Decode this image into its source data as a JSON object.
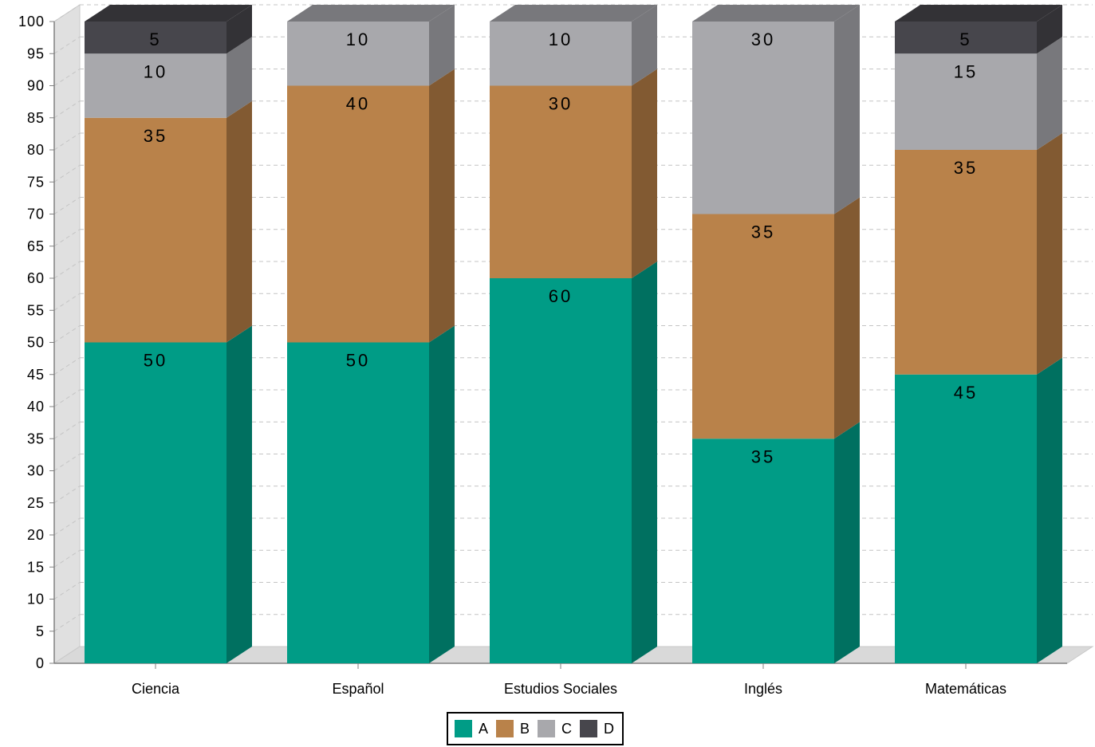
{
  "chart_data": {
    "type": "bar",
    "stacked": true,
    "three_d": true,
    "categories": [
      "Ciencia",
      "Español",
      "Estudios Sociales",
      "Inglés",
      "Matemáticas"
    ],
    "series": [
      {
        "name": "A",
        "values": [
          50,
          50,
          60,
          35,
          45
        ],
        "color": "#009c86",
        "side_color": "#007060"
      },
      {
        "name": "B",
        "values": [
          35,
          40,
          30,
          35,
          35
        ],
        "color": "#b9824a",
        "side_color": "#825a32"
      },
      {
        "name": "C",
        "values": [
          10,
          10,
          10,
          30,
          15
        ],
        "color": "#a8a8ac",
        "side_color": "#78787c"
      },
      {
        "name": "D",
        "values": [
          5,
          0,
          0,
          0,
          5
        ],
        "color": "#47464c",
        "side_color": "#333236"
      }
    ],
    "data_labels": [
      [
        "50",
        "50",
        "60",
        "35",
        "45"
      ],
      [
        "35",
        "40",
        "30",
        "35",
        "35"
      ],
      [
        "10",
        "10",
        "10",
        "30",
        "15"
      ],
      [
        "5",
        "",
        "",
        "",
        "5"
      ]
    ],
    "y_ticks": [
      "0",
      "5",
      "10",
      "15",
      "20",
      "25",
      "30",
      "35",
      "40",
      "45",
      "50",
      "55",
      "60",
      "65",
      "70",
      "75",
      "80",
      "85",
      "90",
      "95",
      "100"
    ],
    "ylim": [
      0,
      100
    ],
    "ystep": 5,
    "grid": true,
    "legend_position": "bottom",
    "title": "",
    "xlabel": "",
    "ylabel": ""
  }
}
